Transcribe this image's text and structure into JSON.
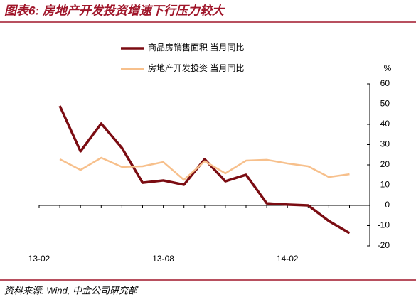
{
  "chart_data": {
    "type": "line",
    "title": "图表6: 房地产开发投资增速下行压力较大",
    "unit": "%",
    "source": "资料来源: Wind, 中金公司研究部",
    "categories": [
      "13-02",
      null,
      null,
      null,
      null,
      null,
      "13-08",
      null,
      null,
      null,
      null,
      null,
      "14-02",
      null,
      null,
      null
    ],
    "series": [
      {
        "name": "商品房销售面积 当月同比",
        "color": "#7b0c12",
        "width": 3.5,
        "values": [
          null,
          49.1,
          26.7,
          40.4,
          28.4,
          11.2,
          12.3,
          10.2,
          22.8,
          11.9,
          15.1,
          1,
          0.4,
          0,
          -7.7,
          -13.7
        ]
      },
      {
        "name": "房地产开发投资 当月同比",
        "color": "#f7c08c",
        "width": 2.5,
        "values": [
          null,
          22.8,
          17.5,
          23.5,
          19,
          19.3,
          21.4,
          12.6,
          21.8,
          15.8,
          22.1,
          22.5,
          20.7,
          19.3,
          14,
          15.4
        ]
      }
    ],
    "ylim": [
      -20,
      60
    ],
    "yticks": [
      -20,
      -10,
      0,
      10,
      20,
      30,
      40,
      50,
      60
    ]
  }
}
